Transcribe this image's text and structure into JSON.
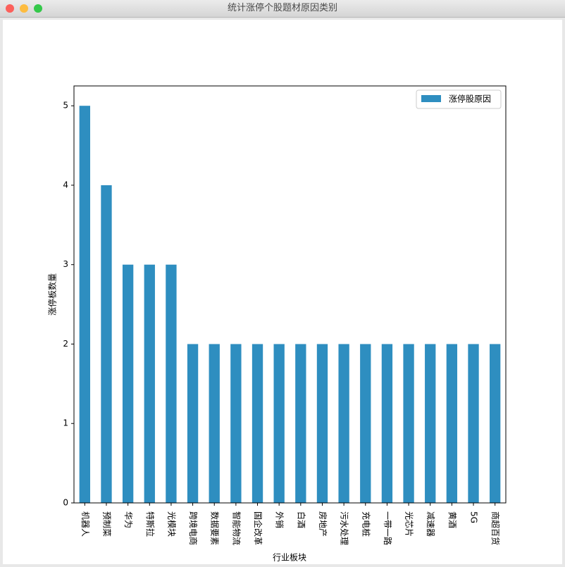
{
  "window": {
    "title": "统计涨停个股题材原因类别"
  },
  "chart_data": {
    "type": "bar",
    "categories": [
      "机器人",
      "预制菜",
      "华为",
      "特斯拉",
      "光模块",
      "跨境电商",
      "数据要素",
      "智能物流",
      "国企改革",
      "外销",
      "白酒",
      "房地产",
      "污水处理",
      "充电桩",
      "一带一路",
      "光芯片",
      "减速器",
      "黄酒",
      "5G",
      "商超百货"
    ],
    "series": [
      {
        "name": "涨停股原因",
        "color": "#2e8ec0",
        "values": [
          5,
          4,
          3,
          3,
          3,
          2,
          2,
          2,
          2,
          2,
          2,
          2,
          2,
          2,
          2,
          2,
          2,
          2,
          2,
          2
        ]
      }
    ],
    "x_label": "行业板块",
    "y_label": "涨停板数量",
    "ylim": [
      0,
      5.25
    ],
    "yticks": [
      0,
      1,
      2,
      3,
      4,
      5
    ],
    "legend": "upper right"
  }
}
